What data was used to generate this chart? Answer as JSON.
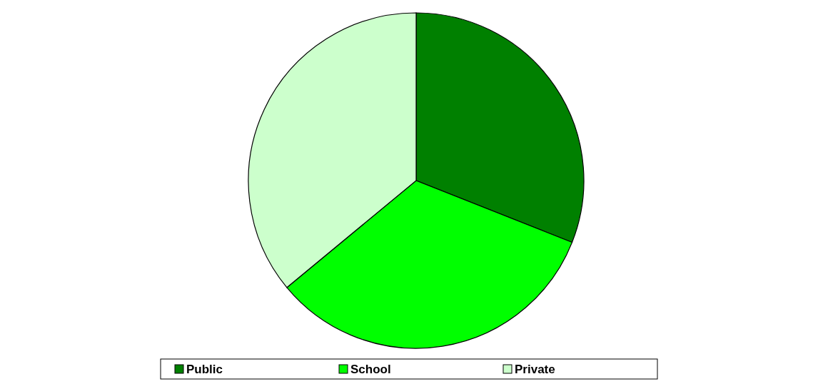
{
  "chart_data": {
    "type": "pie",
    "categories": [
      "Public",
      "School",
      "Private"
    ],
    "values": [
      31,
      33,
      36
    ],
    "colors": [
      "#008000",
      "#00ff00",
      "#ccffcc"
    ],
    "legend": "bottom"
  }
}
